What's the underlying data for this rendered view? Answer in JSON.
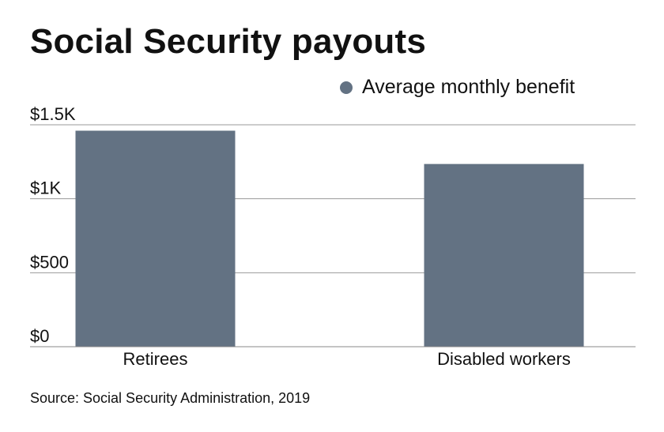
{
  "chart_data": {
    "type": "bar",
    "title": "Social Security payouts",
    "categories": [
      "Retirees",
      "Disabled workers"
    ],
    "series": [
      {
        "name": "Average monthly benefit",
        "values": [
          1460,
          1235
        ]
      }
    ],
    "ylim": [
      0,
      1500
    ],
    "yticks": [
      0,
      500,
      1000,
      1500
    ],
    "ytick_labels": [
      "$0",
      "$500",
      "$1K",
      "$1.5K"
    ],
    "grid": true,
    "legend_position": "top-right",
    "bar_color": "#637283",
    "source": "Source: Social Security Administration, 2019"
  }
}
